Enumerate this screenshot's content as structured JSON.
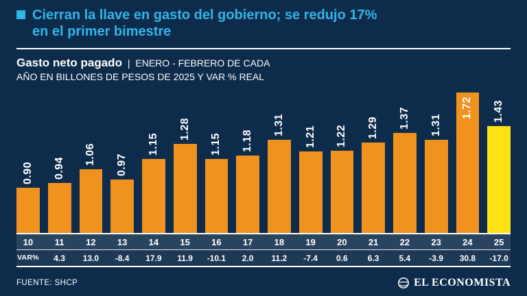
{
  "header": {
    "title_line1": "Cierran la llave en gasto del gobierno; se redujo 17%",
    "title_line2": "en el primer bimestre",
    "label_bold": "Gasto neto pagado",
    "separator": "|",
    "subtitle_line1": "ENERO - FEBRERO DE CADA",
    "subtitle_line2": "AÑO EN BILLONES DE PESOS DE 2025 Y VAR % REAL"
  },
  "chart_data": {
    "type": "bar",
    "title": "Gasto neto pagado",
    "subtitle": "ENERO - FEBRERO DE CADA AÑO EN BILLONES DE PESOS DE 2025 Y VAR % REAL",
    "categories": [
      "10",
      "11",
      "12",
      "13",
      "14",
      "15",
      "16",
      "17",
      "18",
      "19",
      "20",
      "21",
      "22",
      "23",
      "24",
      "25"
    ],
    "values": [
      0.9,
      0.94,
      1.06,
      0.97,
      1.15,
      1.28,
      1.15,
      1.18,
      1.31,
      1.21,
      1.22,
      1.29,
      1.37,
      1.31,
      1.72,
      1.43
    ],
    "value_labels": [
      "0.90",
      "0.94",
      "1.06",
      "0.97",
      "1.15",
      "1.28",
      "1.15",
      "1.18",
      "1.31",
      "1.21",
      "1.22",
      "1.29",
      "1.37",
      "1.31",
      "1.72",
      "1.43"
    ],
    "var_row_label": "VAR%",
    "var_values": [
      "4.3",
      "13.0",
      "-8.4",
      "17.9",
      "11.9",
      "-10.1",
      "2.0",
      "11.2",
      "-7.4",
      "0.6",
      "6.3",
      "5.4",
      "-3.9",
      "30.8",
      "-17.0"
    ],
    "bar_color": "#F0921E",
    "highlight_color": "#FFE011",
    "highlight_index": 15,
    "label_inside_index": 14,
    "value_label_color": "#FFFFFF",
    "ylim": [
      0.9,
      1.72
    ],
    "grid": false,
    "legend": "none",
    "baseline_truncated": true
  },
  "footer": {
    "source": "FUENTE: SHCP",
    "brand": "EL ECONOMISTA"
  },
  "colors": {
    "background": "#0D2B4A",
    "accent_cyan": "#2EB5E8",
    "bar_orange": "#F0921E",
    "bar_yellow": "#FFE011",
    "text": "#FFFFFF"
  }
}
